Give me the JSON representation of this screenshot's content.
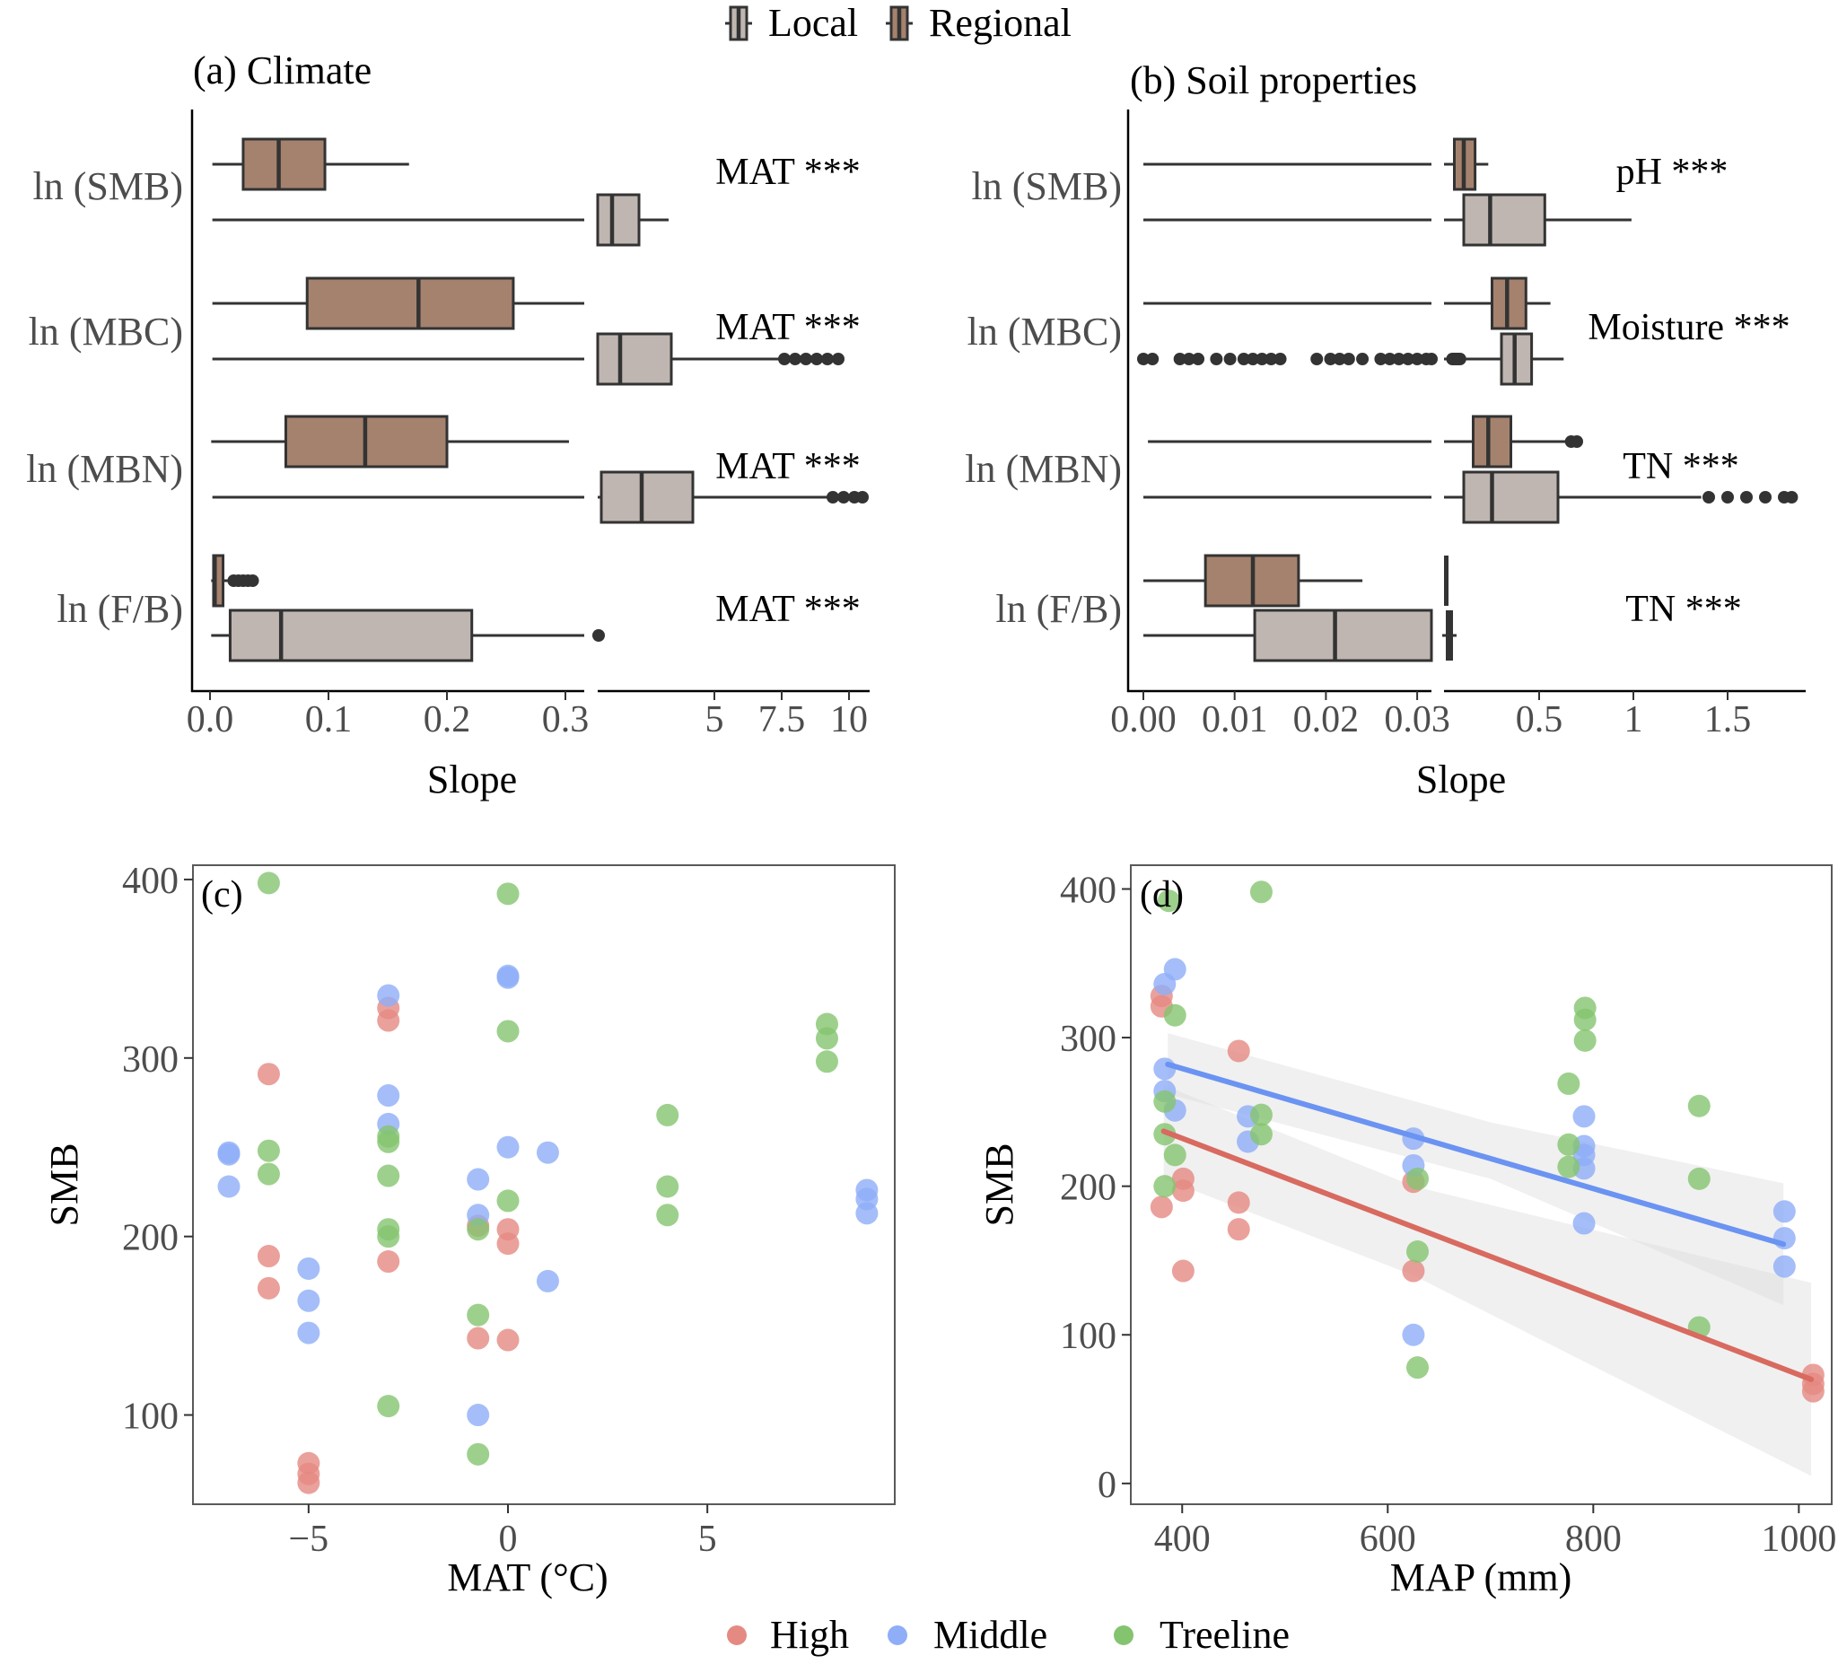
{
  "legend_top": {
    "items": [
      {
        "label": "Local",
        "color": "#BFB6B1"
      },
      {
        "label": "Regional",
        "color": "#A5826E"
      }
    ]
  },
  "legend_bottom": {
    "items": [
      {
        "label": "High",
        "color": "#E58A82"
      },
      {
        "label": "Middle",
        "color": "#8FAEF7"
      },
      {
        "label": "Treeline",
        "color": "#84C46F"
      }
    ]
  },
  "chart_data": [
    {
      "id": "a",
      "type": "boxplot",
      "title": "(a) Climate",
      "xlabel": "Slope",
      "ylabel": "",
      "x_axis": {
        "broken": true,
        "segments": [
          {
            "range": [
              0,
              0.316
            ],
            "ticks": [
              {
                "v": 0.0,
                "label": "0.0"
              },
              {
                "v": 0.1,
                "label": "0.1"
              },
              {
                "v": 0.2,
                "label": "0.2"
              },
              {
                "v": 0.3,
                "label": "0.3"
              }
            ]
          },
          {
            "range": [
              0.6,
              10.5
            ],
            "ticks": [
              {
                "v": 5,
                "label": "5"
              },
              {
                "v": 7.5,
                "label": "7.5"
              },
              {
                "v": 10,
                "label": "10"
              }
            ]
          }
        ]
      },
      "categories": [
        "ln (SMB)",
        "ln (MBC)",
        "ln (MBN)",
        "ln (F/B)"
      ],
      "annotations": [
        "MAT ***",
        "MAT ***",
        "MAT ***",
        "MAT ***"
      ],
      "series": [
        {
          "name": "Regional",
          "boxes": [
            {
              "whisker_low": 0.002,
              "q1": 0.028,
              "median": 0.058,
              "q3": 0.097,
              "whisker_high": 0.168,
              "outliers": []
            },
            {
              "whisker_low": 0.002,
              "q1": 0.082,
              "median": 0.176,
              "q3": 0.256,
              "whisker_high": 0.316,
              "outliers": []
            },
            {
              "whisker_low": 0.001,
              "q1": 0.064,
              "median": 0.131,
              "q3": 0.2,
              "whisker_high": 0.303,
              "outliers": []
            },
            {
              "whisker_low": 0.001,
              "q1": 0.003,
              "median": 0.004,
              "q3": 0.011,
              "whisker_high": 0.019,
              "outliers": [
                0.02,
                0.024,
                0.028,
                0.032,
                0.036
              ]
            }
          ]
        },
        {
          "name": "Local",
          "boxes": [
            {
              "whisker_low": 0.002,
              "q1": 0.65,
              "median": 1.2,
              "q3": 2.2,
              "whisker_high": 3.3,
              "outliers": []
            },
            {
              "whisker_low": 0.002,
              "q1": 0.6,
              "median": 1.5,
              "q3": 3.4,
              "whisker_high": 7.5,
              "outliers": [
                7.6,
                8.0,
                8.4,
                8.8,
                9.2,
                9.6
              ]
            },
            {
              "whisker_low": 0.002,
              "q1": 0.8,
              "median": 2.3,
              "q3": 4.2,
              "whisker_high": 9.3,
              "outliers": [
                9.4,
                9.8,
                10.2,
                10.5
              ]
            },
            {
              "whisker_low": 0.001,
              "q1": 0.017,
              "median": 0.06,
              "q3": 0.221,
              "whisker_high": 0.316,
              "outliers": [
                0.7
              ]
            }
          ]
        }
      ]
    },
    {
      "id": "b",
      "type": "boxplot",
      "title": "(b) Soil properties",
      "xlabel": "Slope",
      "ylabel": "",
      "x_axis": {
        "broken": true,
        "segments": [
          {
            "range": [
              0,
              0.032
            ],
            "ticks": [
              {
                "v": 0.0,
                "label": "0.00"
              },
              {
                "v": 0.01,
                "label": "0.01"
              },
              {
                "v": 0.02,
                "label": "0.02"
              },
              {
                "v": 0.03,
                "label": "0.03"
              }
            ]
          },
          {
            "range": [
              0,
              1.85
            ],
            "ticks": [
              {
                "v": 0.5,
                "label": "0.5"
              },
              {
                "v": 1,
                "label": "1"
              },
              {
                "v": 1.5,
                "label": "1.5"
              }
            ]
          }
        ]
      },
      "categories": [
        "ln (SMB)",
        "ln (MBC)",
        "ln (MBN)",
        "ln (F/B)"
      ],
      "annotations": [
        "pH ***",
        "Moisture ***",
        "TN ***",
        "TN ***"
      ],
      "series": [
        {
          "name": "Regional",
          "boxes": [
            {
              "whisker_low": 0.0,
              "q1": 0.05,
              "median": 0.1,
              "q3": 0.16,
              "whisker_high": 0.23,
              "outliers": []
            },
            {
              "whisker_low": 0.0,
              "q1": 0.25,
              "median": 0.33,
              "q3": 0.43,
              "whisker_high": 0.56,
              "outliers": []
            },
            {
              "whisker_low": 0.0005,
              "q1": 0.15,
              "median": 0.23,
              "q3": 0.35,
              "whisker_high": 0.65,
              "outliers": [
                0.67,
                0.7
              ]
            },
            {
              "whisker_low": 0.0,
              "q1": 0.0068,
              "median": 0.012,
              "q3": 0.017,
              "whisker_high": 0.024,
              "outliers": [],
              "right_segment_mark": 0.0
            }
          ]
        },
        {
          "name": "Local",
          "boxes": [
            {
              "whisker_low": 0.0,
              "q1": 0.1,
              "median": 0.24,
              "q3": 0.53,
              "whisker_high": 0.99,
              "outliers": []
            },
            {
              "whisker_low": 0.08,
              "q1": 0.3,
              "median": 0.37,
              "q3": 0.46,
              "whisker_high": 0.63,
              "outliers": [
                0.0,
                0.001,
                0.004,
                0.005,
                0.006,
                0.008,
                0.0095,
                0.011,
                0.012,
                0.013,
                0.014,
                0.015,
                0.019,
                0.0205,
                0.0215,
                0.0225,
                0.024,
                0.026,
                0.027,
                0.028,
                0.029,
                0.03,
                0.031,
                0.032,
                0.04,
                0.05,
                0.06,
                0.07,
                0.08
              ]
            },
            {
              "whisker_low": 0.0,
              "q1": 0.1,
              "median": 0.25,
              "q3": 0.6,
              "whisker_high": 1.36,
              "outliers": [
                1.4,
                1.5,
                1.6,
                1.7,
                1.8,
                1.84
              ]
            },
            {
              "whisker_low": 0.0,
              "q1": 0.0122,
              "median": 0.021,
              "q3": 0.0316,
              "whisker_high": 0.06,
              "outliers": [],
              "right_segment_box": [
                0.0,
                0.04
              ]
            }
          ]
        }
      ]
    },
    {
      "id": "c",
      "type": "scatter",
      "title": "(c)",
      "xlabel": "MAT (°C)",
      "ylabel": "SMB",
      "xlim": [
        -7.9,
        9.7
      ],
      "ylim": [
        50,
        408
      ],
      "xticks": [
        {
          "v": -5,
          "label": "−5"
        },
        {
          "v": 0,
          "label": "0"
        },
        {
          "v": 5,
          "label": "5"
        }
      ],
      "yticks": [
        {
          "v": 100,
          "label": "100"
        },
        {
          "v": 200,
          "label": "200"
        },
        {
          "v": 300,
          "label": "300"
        },
        {
          "v": 400,
          "label": "400"
        }
      ],
      "grid": false,
      "series": [
        {
          "name": "High",
          "points": [
            [
              -6,
              291
            ],
            [
              -6,
              189
            ],
            [
              -6,
              171
            ],
            [
              -5,
              73
            ],
            [
              -5,
              67
            ],
            [
              -5,
              62
            ],
            [
              -3,
              328
            ],
            [
              -3,
              321
            ],
            [
              -3,
              186
            ],
            [
              -0.75,
              206
            ],
            [
              -0.75,
              143
            ],
            [
              0,
              204
            ],
            [
              0,
              196
            ],
            [
              0,
              142
            ]
          ]
        },
        {
          "name": "Middle",
          "points": [
            [
              -7,
              247
            ],
            [
              -7,
              246
            ],
            [
              -7,
              228
            ],
            [
              -5,
              182
            ],
            [
              -5,
              164
            ],
            [
              -5,
              146
            ],
            [
              -3,
              335
            ],
            [
              -3,
              279
            ],
            [
              -3,
              263
            ],
            [
              -0.75,
              232
            ],
            [
              -0.75,
              212
            ],
            [
              -0.75,
              100
            ],
            [
              0,
              346
            ],
            [
              0,
              345
            ],
            [
              0,
              250
            ],
            [
              1,
              247
            ],
            [
              1,
              175
            ],
            [
              9,
              226
            ],
            [
              9,
              221
            ],
            [
              9,
              213
            ]
          ]
        },
        {
          "name": "Treeline",
          "points": [
            [
              -6,
              398
            ],
            [
              -6,
              248
            ],
            [
              -6,
              235
            ],
            [
              -3,
              256
            ],
            [
              -3,
              253
            ],
            [
              -3,
              234
            ],
            [
              -3,
              204
            ],
            [
              -3,
              200
            ],
            [
              -3,
              105
            ],
            [
              -0.75,
              204
            ],
            [
              -0.75,
              156
            ],
            [
              -0.75,
              78
            ],
            [
              0,
              392
            ],
            [
              0,
              315
            ],
            [
              0,
              220
            ],
            [
              4,
              268
            ],
            [
              4,
              228
            ],
            [
              4,
              212
            ],
            [
              8,
              319
            ],
            [
              8,
              311
            ],
            [
              8,
              298
            ]
          ]
        }
      ]
    },
    {
      "id": "d",
      "type": "scatter",
      "title": "(d)",
      "xlabel": "MAP (mm)",
      "ylabel": "SMB",
      "xlim": [
        350,
        1032
      ],
      "ylim": [
        -14,
        416
      ],
      "xticks": [
        {
          "v": 400,
          "label": "400"
        },
        {
          "v": 600,
          "label": "600"
        },
        {
          "v": 800,
          "label": "800"
        },
        {
          "v": 1000,
          "label": "1000"
        }
      ],
      "yticks": [
        {
          "v": 0,
          "label": "0"
        },
        {
          "v": 100,
          "label": "100"
        },
        {
          "v": 200,
          "label": "200"
        },
        {
          "v": 300,
          "label": "300"
        },
        {
          "v": 400,
          "label": "400"
        }
      ],
      "grid": false,
      "series": [
        {
          "name": "High",
          "points": [
            [
              380,
              328
            ],
            [
              380,
              321
            ],
            [
              380,
              186
            ],
            [
              401,
              205
            ],
            [
              401,
              197
            ],
            [
              401,
              143
            ],
            [
              455,
              291
            ],
            [
              455,
              189
            ],
            [
              455,
              171
            ],
            [
              625,
              203
            ],
            [
              625,
              143
            ],
            [
              1014,
              73
            ],
            [
              1014,
              67
            ],
            [
              1014,
              62
            ]
          ],
          "fit": {
            "x": [
              382,
              1012
            ],
            "y": [
              237,
              70
            ],
            "ci_low": [
              [
                382,
                205
              ],
              [
                625,
                140
              ],
              [
                1012,
                5
              ]
            ],
            "ci_high": [
              [
                382,
                268
              ],
              [
                625,
                200
              ],
              [
                1012,
                135
              ]
            ]
          }
        },
        {
          "name": "Middle",
          "points": [
            [
              383,
              336
            ],
            [
              393,
              346
            ],
            [
              383,
              279
            ],
            [
              383,
              264
            ],
            [
              393,
              251
            ],
            [
              464,
              247
            ],
            [
              464,
              230
            ],
            [
              625,
              232
            ],
            [
              625,
              214
            ],
            [
              625,
              100
            ],
            [
              791,
              247
            ],
            [
              791,
              227
            ],
            [
              791,
              221
            ],
            [
              791,
              212
            ],
            [
              791,
              175
            ],
            [
              986,
              183
            ],
            [
              986,
              165
            ],
            [
              986,
              146
            ]
          ],
          "fit": {
            "x": [
              386,
              985
            ],
            "y": [
              282,
              161
            ],
            "ci_low": [
              [
                386,
                262
              ],
              [
                700,
                205
              ],
              [
                985,
                120
              ]
            ],
            "ci_high": [
              [
                386,
                303
              ],
              [
                700,
                243
              ],
              [
                985,
                202
              ]
            ]
          }
        },
        {
          "name": "Treeline",
          "points": [
            [
              387,
              392
            ],
            [
              477,
              398
            ],
            [
              393,
              315
            ],
            [
              383,
              257
            ],
            [
              383,
              235
            ],
            [
              393,
              221
            ],
            [
              383,
              200
            ],
            [
              477,
              248
            ],
            [
              477,
              235
            ],
            [
              629,
              205
            ],
            [
              629,
              156
            ],
            [
              629,
              78
            ],
            [
              776,
              269
            ],
            [
              776,
              228
            ],
            [
              776,
              213
            ],
            [
              792,
              320
            ],
            [
              792,
              312
            ],
            [
              792,
              298
            ],
            [
              903,
              254
            ],
            [
              903,
              205
            ],
            [
              903,
              105
            ]
          ]
        }
      ]
    }
  ]
}
